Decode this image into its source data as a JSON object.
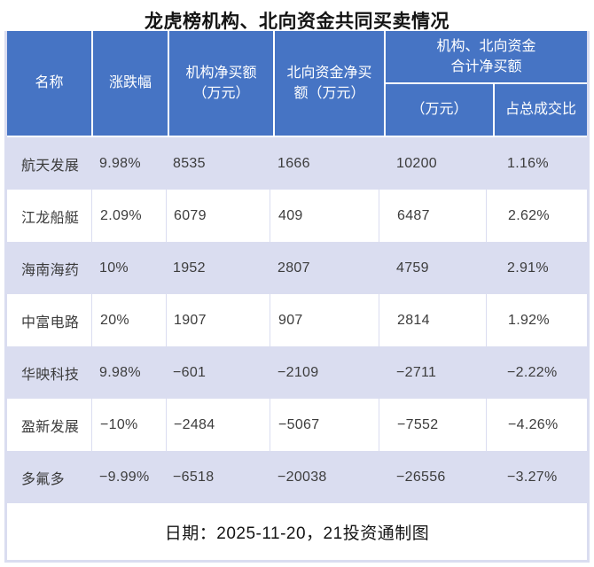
{
  "title": "龙虎榜机构、北向资金共同买卖情况",
  "colors": {
    "header_bg": "#4674C4",
    "header_text": "#FFFFFF",
    "row_alt_bg": "#DADDF0",
    "row_bg": "#FFFFFF",
    "body_text": "#3C3C3C",
    "frame_border": "#DADDF0"
  },
  "header": {
    "name": "名称",
    "change": "涨跌幅",
    "inst": [
      "机构净买额",
      "（万元）"
    ],
    "north": [
      "北向资金净买",
      "额（万元）"
    ],
    "combo": [
      "机构、北向资金",
      "合计净买额"
    ],
    "combo_amount": "（万元）",
    "combo_ratio": "占总成交比"
  },
  "rows": [
    {
      "name": "航天发展",
      "change": "9.98%",
      "inst": "8535",
      "north": "1666",
      "total": "10200",
      "ratio": "1.16%"
    },
    {
      "name": "江龙船艇",
      "change": "2.09%",
      "inst": "6079",
      "north": "409",
      "total": "6487",
      "ratio": "2.62%"
    },
    {
      "name": "海南海药",
      "change": "10%",
      "inst": "1952",
      "north": "2807",
      "total": "4759",
      "ratio": "2.91%"
    },
    {
      "name": "中富电路",
      "change": "20%",
      "inst": "1907",
      "north": "907",
      "total": "2814",
      "ratio": "1.92%"
    },
    {
      "name": "华映科技",
      "change": "9.98%",
      "inst": "−601",
      "north": "−2109",
      "total": "−2711",
      "ratio": "−2.22%"
    },
    {
      "name": "盈新发展",
      "change": "−10%",
      "inst": "−2484",
      "north": "−5067",
      "total": "−7552",
      "ratio": "−4.26%"
    },
    {
      "name": "多氟多",
      "change": "−9.99%",
      "inst": "−6518",
      "north": "−20038",
      "total": "−26556",
      "ratio": "−3.27%"
    }
  ],
  "footer": "日期：2025-11-20，21投资通制图",
  "chart_data": {
    "type": "table",
    "title": "龙虎榜机构、北向资金共同买卖情况",
    "columns": [
      "名称",
      "涨跌幅",
      "机构净买额（万元）",
      "北向资金净买额（万元）",
      "机构、北向资金合计净买额（万元）",
      "机构、北向资金合计净买额占总成交比"
    ],
    "rows": [
      [
        "航天发展",
        "9.98%",
        8535,
        1666,
        10200,
        "1.16%"
      ],
      [
        "江龙船艇",
        "2.09%",
        6079,
        409,
        6487,
        "2.62%"
      ],
      [
        "海南海药",
        "10%",
        1952,
        2807,
        4759,
        "2.91%"
      ],
      [
        "中富电路",
        "20%",
        1907,
        907,
        2814,
        "1.92%"
      ],
      [
        "华映科技",
        "9.98%",
        -601,
        -2109,
        -2711,
        "-2.22%"
      ],
      [
        "盈新发展",
        "-10%",
        -2484,
        -5067,
        -7552,
        "-4.26%"
      ],
      [
        "多氟多",
        "-9.99%",
        -6518,
        -20038,
        -26556,
        "-3.27%"
      ]
    ],
    "note": "日期：2025-11-20，21投资通制图",
    "legend_position": "none",
    "grid": true
  }
}
